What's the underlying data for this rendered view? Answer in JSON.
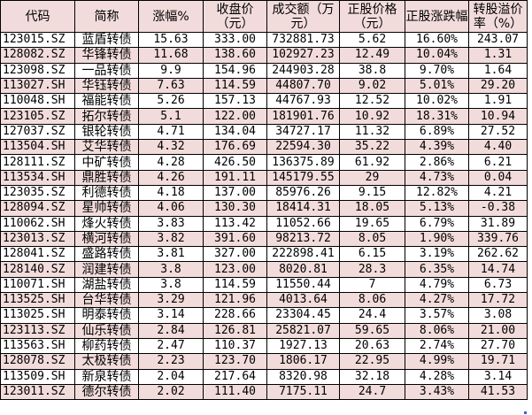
{
  "headers": [
    "代码",
    "简称",
    "涨幅%",
    "收盘价（元）",
    "成交额（万元）",
    "正股价格（元）",
    "正股涨跌幅",
    "转股溢价率（%）"
  ],
  "rows": [
    [
      "123015.SZ",
      "蓝盾转债",
      "15.63",
      "333.00",
      "732881.73",
      "5.62",
      "16.60%",
      "243.07"
    ],
    [
      "128082.SZ",
      "华锋转债",
      "11.68",
      "138.60",
      "102927.23",
      "12.49",
      "10.04%",
      "1.31"
    ],
    [
      "123098.SZ",
      "一品转债",
      "9.9",
      "154.96",
      "244903.28",
      "38.8",
      "9.70%",
      "1.64"
    ],
    [
      "113027.SH",
      "华钰转债",
      "7.63",
      "114.59",
      "44807.70",
      "9.02",
      "5.01%",
      "29.20"
    ],
    [
      "110048.SH",
      "福能转债",
      "5.26",
      "157.13",
      "44767.93",
      "12.52",
      "10.02%",
      "1.91"
    ],
    [
      "123105.SZ",
      "拓尔转债",
      "5.1",
      "122.00",
      "181901.76",
      "10.92",
      "18.31%",
      "10.94"
    ],
    [
      "127037.SZ",
      "银轮转债",
      "4.71",
      "134.04",
      "34727.17",
      "11.32",
      "6.89%",
      "27.52"
    ],
    [
      "113504.SH",
      "艾华转债",
      "4.32",
      "176.69",
      "22594.30",
      "35.22",
      "4.39%",
      "4.40"
    ],
    [
      "128111.SZ",
      "中矿转债",
      "4.28",
      "426.50",
      "136375.89",
      "61.92",
      "2.86%",
      "6.21"
    ],
    [
      "113534.SH",
      "鼎胜转债",
      "4.26",
      "191.11",
      "145179.55",
      "29",
      "4.73%",
      "0.04"
    ],
    [
      "123035.SZ",
      "利德转债",
      "4.18",
      "137.00",
      "85976.26",
      "9.15",
      "12.82%",
      "4.21"
    ],
    [
      "128094.SZ",
      "星帅转债",
      "4.06",
      "130.30",
      "18414.31",
      "18.05",
      "5.13%",
      "-0.38"
    ],
    [
      "110062.SH",
      "烽火转债",
      "3.83",
      "113.42",
      "11052.66",
      "19.65",
      "6.79%",
      "31.89"
    ],
    [
      "123013.SZ",
      "横河转债",
      "3.82",
      "391.60",
      "98213.72",
      "8.05",
      "1.90%",
      "339.76"
    ],
    [
      "128041.SZ",
      "盛路转债",
      "3.81",
      "327.00",
      "222898.41",
      "6.15",
      "3.19%",
      "262.62"
    ],
    [
      "128140.SZ",
      "润建转债",
      "3.8",
      "123.00",
      "8020.81",
      "28.3",
      "6.35%",
      "14.74"
    ],
    [
      "110071.SH",
      "湖盐转债",
      "3.8",
      "114.59",
      "11550.44",
      "7",
      "4.79%",
      "6.73"
    ],
    [
      "113525.SH",
      "台华转债",
      "3.29",
      "121.96",
      "4013.64",
      "8.06",
      "4.27%",
      "17.72"
    ],
    [
      "113025.SH",
      "明泰转债",
      "3.14",
      "228.66",
      "23304.45",
      "24.4",
      "3.57%",
      "3.08"
    ],
    [
      "123113.SZ",
      "仙乐转债",
      "2.84",
      "126.81",
      "25821.07",
      "59.65",
      "8.06%",
      "21.00"
    ],
    [
      "113563.SH",
      "柳药转债",
      "2.47",
      "110.37",
      "1927.13",
      "20.63",
      "2.74%",
      "27.70"
    ],
    [
      "128078.SZ",
      "太极转债",
      "2.23",
      "123.70",
      "1806.17",
      "22.95",
      "4.99%",
      "19.71"
    ],
    [
      "113509.SH",
      "新泉转债",
      "2.04",
      "217.64",
      "8320.98",
      "32.18",
      "4.28%",
      "3.14"
    ],
    [
      "123011.SZ",
      "德尔转债",
      "2.02",
      "111.40",
      "7175.11",
      "24.7",
      "3.43%",
      "41.53"
    ]
  ],
  "colors": {
    "header_bg": "#f2dcdb",
    "alt_row_bg": "#f2dcdb"
  }
}
